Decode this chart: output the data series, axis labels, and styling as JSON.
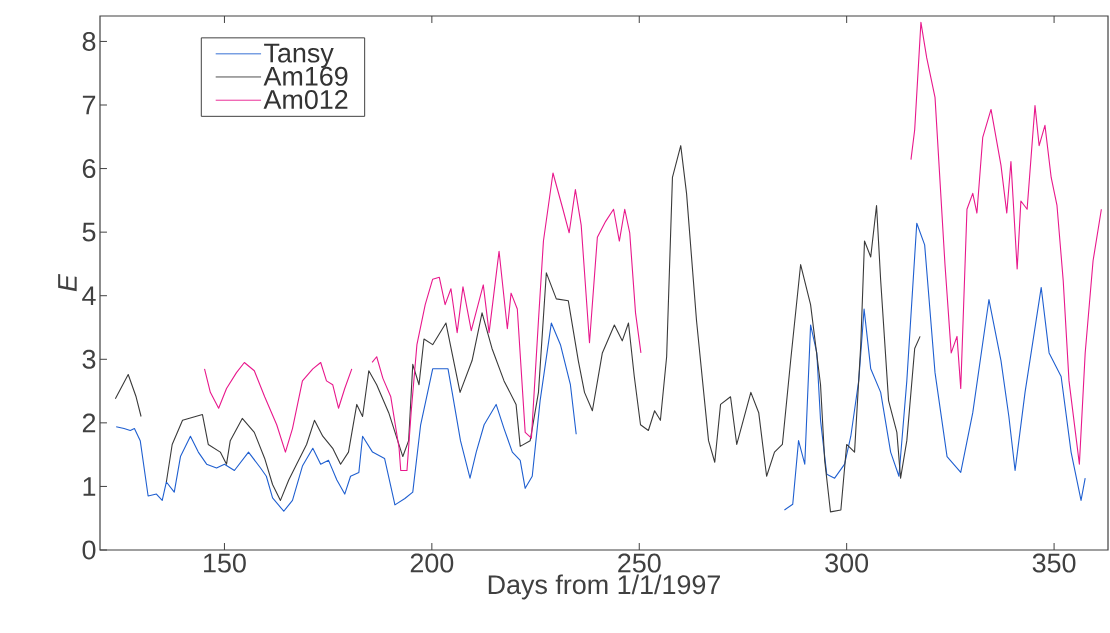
{
  "chart_data": {
    "type": "line",
    "xlabel": "Days from 1/1/1997",
    "ylabel": "*E*",
    "xlim": [
      120,
      363
    ],
    "ylim": [
      0,
      8.4
    ],
    "xticks": [
      150,
      200,
      250,
      300,
      350
    ],
    "yticks": [
      0,
      1,
      2,
      3,
      4,
      5,
      6,
      7,
      8
    ],
    "legend": "top left",
    "series": [
      {
        "name": "Tansy",
        "color": "#1f5fd0",
        "x": [
          123.9,
          125.8,
          127.3,
          128.3,
          129.7,
          131.6,
          133.6,
          135,
          136,
          137.9,
          139.4,
          141.8,
          143.7,
          145.7,
          148.1,
          150,
          152.4,
          155.8,
          158.7,
          160.1,
          161.6,
          164.3,
          166.4,
          168.8,
          171.3,
          173.2,
          175.1,
          177.1,
          179,
          180.4,
          182.4,
          183.3,
          185.7,
          188.6,
          191.1,
          193.5,
          195.4,
          197.3,
          200.2,
          203.9,
          204.9,
          206.9,
          209.2,
          210.7,
          212.6,
          215.5,
          217.4,
          219.4,
          221.3,
          222.5,
          224.2,
          226.1,
          228.8,
          231,
          233.4,
          234.8,
          260,
          285,
          287,
          288.4,
          289.9,
          291.3,
          292.8,
          293.7,
          295.2,
          297.1,
          299.5,
          301,
          302.9,
          304.2,
          305.8,
          308.2,
          310.6,
          312.6,
          314.5,
          316.9,
          318.8,
          321.3,
          324.2,
          327.5,
          330.4,
          334.3,
          337.2,
          339.1,
          340.6,
          343,
          346.9,
          348.8,
          351.7,
          354.1,
          356.5,
          357.5
        ],
        "values": [
          1.94,
          1.91,
          1.88,
          1.91,
          1.72,
          0.85,
          0.88,
          0.78,
          1.07,
          0.91,
          1.47,
          1.79,
          1.54,
          1.35,
          1.29,
          1.35,
          1.25,
          1.54,
          1.29,
          1.16,
          0.82,
          0.61,
          0.78,
          1.32,
          1.6,
          1.35,
          1.41,
          1.1,
          0.88,
          1.16,
          1.22,
          1.79,
          1.54,
          1.44,
          0.71,
          0.81,
          0.91,
          1.97,
          2.85,
          2.85,
          2.48,
          1.72,
          1.13,
          1.54,
          1.97,
          2.29,
          1.91,
          1.54,
          1.41,
          0.97,
          1.16,
          2.35,
          3.57,
          3.23,
          2.6,
          1.82,
          null,
          0.63,
          0.72,
          1.72,
          1.35,
          3.54,
          3.1,
          2.04,
          1.19,
          1.13,
          1.35,
          1.79,
          2.66,
          3.79,
          2.85,
          2.48,
          1.54,
          1.16,
          2.66,
          5.14,
          4.8,
          2.79,
          1.47,
          1.22,
          2.16,
          3.94,
          2.98,
          2.1,
          1.25,
          2.48,
          4.13,
          3.1,
          2.73,
          1.54,
          0.78,
          1.13
        ]
      },
      {
        "name": "Am169",
        "color": "#3a3a3a",
        "x": [
          123.7,
          126.8,
          128.7,
          129.9,
          133,
          136,
          137.4,
          139.9,
          144.7,
          146.1,
          149,
          150.5,
          151.4,
          154.3,
          157.2,
          159.7,
          161.6,
          163.5,
          165.5,
          167.4,
          169.8,
          171.7,
          173.7,
          176.1,
          178,
          179.9,
          181.9,
          183.3,
          184.8,
          186.7,
          189.6,
          193,
          194.4,
          195.4,
          196.9,
          198.1,
          200.2,
          203.4,
          206.8,
          209.7,
          212.1,
          214.5,
          217.4,
          220.3,
          221.3,
          223.7,
          225.7,
          227.6,
          230,
          232.9,
          235.3,
          236.8,
          238.7,
          241.1,
          244,
          245.9,
          247.4,
          248.8,
          250.3,
          252.2,
          253.7,
          255.1,
          256.6,
          258,
          260,
          261.4,
          263.8,
          266.7,
          268.2,
          269.6,
          272,
          273.5,
          276.9,
          278.8,
          280.7,
          282.6,
          284.5,
          286.5,
          288.9,
          291.3,
          293.7,
          294.7,
          296.1,
          298.6,
          300,
          301.9,
          303.4,
          304.3,
          305.8,
          307.2,
          308.2,
          310.1,
          312.1,
          313,
          314.5,
          316.4,
          317.7
        ],
        "values": [
          2.38,
          2.76,
          2.41,
          2.1,
          null,
          1.07,
          1.66,
          2.04,
          2.13,
          1.66,
          1.54,
          1.35,
          1.72,
          2.07,
          1.85,
          1.44,
          1.03,
          0.78,
          1.1,
          1.35,
          1.66,
          2.04,
          1.79,
          1.6,
          1.35,
          1.54,
          2.29,
          2.1,
          2.82,
          2.6,
          2.16,
          1.47,
          1.72,
          2.92,
          2.6,
          3.32,
          3.23,
          3.57,
          2.48,
          2.98,
          3.73,
          3.17,
          2.66,
          2.29,
          1.63,
          1.72,
          2.48,
          4.36,
          3.95,
          3.92,
          2.98,
          2.48,
          2.19,
          3.1,
          3.54,
          3.29,
          3.57,
          2.73,
          1.97,
          1.88,
          2.19,
          2.04,
          3.04,
          5.86,
          6.36,
          5.61,
          3.61,
          1.72,
          1.38,
          2.29,
          2.41,
          1.66,
          2.48,
          2.16,
          1.16,
          1.54,
          1.66,
          2.98,
          4.49,
          3.86,
          2.6,
          1.41,
          0.6,
          0.63,
          1.66,
          1.54,
          3.23,
          4.86,
          4.61,
          5.42,
          4.24,
          2.35,
          1.85,
          1.13,
          1.72,
          3.17,
          3.36
        ]
      },
      {
        "name": "Am012",
        "color": "#e8188c",
        "x": [
          145.2,
          146.6,
          148.6,
          150.5,
          152.9,
          154.8,
          157.2,
          159.7,
          162.6,
          164.7,
          166.4,
          168.8,
          171.3,
          173.2,
          174.6,
          176.1,
          177.5,
          179,
          180.7,
          183,
          185.6,
          186.7,
          188.2,
          190.1,
          192.1,
          192.5,
          194,
          195,
          196.4,
          198.4,
          200.2,
          201.8,
          203.2,
          204.6,
          206.1,
          207.5,
          209.5,
          212.4,
          213.8,
          216.2,
          218.2,
          219.1,
          220.6,
          222.5,
          224,
          225.7,
          226.9,
          229.2,
          231.6,
          233.1,
          234.6,
          236,
          238,
          239.9,
          241.9,
          243.8,
          245.2,
          246.5,
          247.7,
          249.1,
          250.4,
          280,
          315.5,
          316.4,
          317.9,
          319.3,
          321.3,
          323.7,
          325.2,
          326.6,
          327.5,
          329,
          330.4,
          331.4,
          332.8,
          334.8,
          337.2,
          338.6,
          339.6,
          341.1,
          342,
          343.5,
          345.4,
          346.4,
          347.8,
          349.3,
          350.7,
          352.2,
          353.6,
          356.1,
          357.5,
          359.4,
          361.4
        ],
        "values": [
          2.85,
          2.48,
          2.23,
          2.54,
          2.79,
          2.95,
          2.82,
          2.41,
          1.97,
          1.54,
          1.91,
          2.66,
          2.85,
          2.95,
          2.66,
          2.6,
          2.23,
          2.54,
          2.85,
          null,
          2.95,
          3.04,
          2.7,
          2.41,
          1.6,
          1.25,
          1.25,
          2.16,
          3.23,
          3.86,
          4.26,
          4.29,
          3.86,
          4.11,
          3.42,
          4.14,
          3.45,
          4.17,
          3.42,
          4.7,
          3.48,
          4.04,
          3.79,
          1.85,
          1.76,
          3.61,
          4.86,
          5.93,
          5.36,
          4.99,
          5.67,
          5.11,
          3.26,
          4.92,
          5.17,
          5.36,
          4.86,
          5.36,
          4.99,
          3.73,
          3.1,
          null,
          6.14,
          6.61,
          8.3,
          7.74,
          7.12,
          4.49,
          3.1,
          3.36,
          2.54,
          5.36,
          5.61,
          5.3,
          6.49,
          6.93,
          6.05,
          5.3,
          6.11,
          4.42,
          5.49,
          5.36,
          6.99,
          6.36,
          6.68,
          5.86,
          5.42,
          4.24,
          2.66,
          1.35,
          3.1,
          4.55,
          5.36
        ]
      }
    ]
  }
}
